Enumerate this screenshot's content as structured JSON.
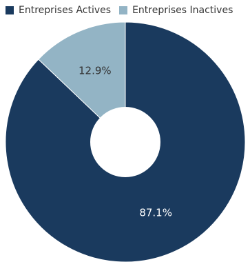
{
  "chart_data": {
    "type": "pie",
    "variant": "donut",
    "categories": [
      "Entreprises Actives",
      "Entreprises Inactives"
    ],
    "values": [
      87.1,
      12.9
    ],
    "labels": [
      "87.1%",
      "12.9%"
    ],
    "colors": [
      "#1a3a5e",
      "#93b4c5"
    ],
    "label_colors": [
      "#ffffff",
      "#333333"
    ],
    "legend_position": "top-left",
    "start": "12 o'clock, clockwise"
  }
}
